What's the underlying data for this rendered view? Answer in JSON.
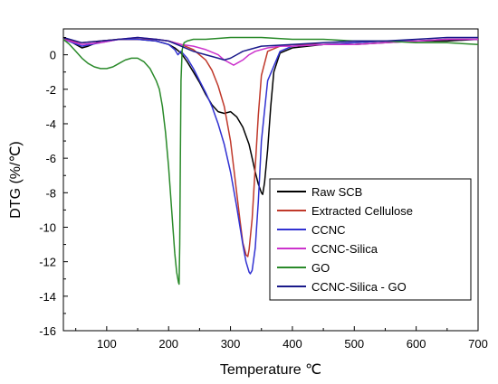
{
  "chart_data": {
    "type": "line",
    "title": "",
    "xlabel": "Temperature  ℃",
    "ylabel": "DTG (%/℃)",
    "xlim": [
      30,
      700
    ],
    "ylim": [
      -16,
      1.5
    ],
    "x_ticks": [
      100,
      200,
      300,
      400,
      500,
      600,
      700
    ],
    "x_tick_labels": [
      "100",
      "200",
      "300",
      "400",
      "500",
      "600",
      "700"
    ],
    "y_ticks": [
      0,
      -2,
      -4,
      -6,
      -8,
      -10,
      -12,
      -14,
      -16
    ],
    "y_tick_labels": [
      "0",
      "-2",
      "-4",
      "-6",
      "-8",
      "-10",
      "-12",
      "-14",
      "-16"
    ],
    "grid": false,
    "legend_position": "lower-right",
    "series": [
      {
        "name": "Raw SCB",
        "color": "#000000",
        "x": [
          30,
          50,
          60,
          70,
          90,
          120,
          150,
          180,
          200,
          210,
          220,
          230,
          240,
          250,
          260,
          270,
          280,
          290,
          300,
          310,
          320,
          330,
          335,
          340,
          345,
          350,
          352,
          355,
          360,
          365,
          370,
          380,
          400,
          450,
          500,
          550,
          600,
          650,
          700
        ],
        "y": [
          1.0,
          0.6,
          0.4,
          0.5,
          0.8,
          0.9,
          0.9,
          0.8,
          0.6,
          0.4,
          0.1,
          -0.4,
          -1.0,
          -1.6,
          -2.3,
          -2.9,
          -3.3,
          -3.4,
          -3.3,
          -3.6,
          -4.2,
          -5.2,
          -6.0,
          -6.8,
          -7.5,
          -8.0,
          -8.1,
          -7.4,
          -5.5,
          -3.0,
          -1.0,
          0.1,
          0.4,
          0.6,
          0.6,
          0.7,
          0.8,
          0.8,
          0.9
        ]
      },
      {
        "name": "Extracted Cellulose",
        "color": "#c0392b",
        "x": [
          30,
          60,
          90,
          120,
          150,
          180,
          200,
          220,
          240,
          260,
          270,
          280,
          290,
          300,
          305,
          310,
          315,
          320,
          325,
          328,
          330,
          335,
          340,
          345,
          350,
          360,
          380,
          400,
          450,
          500,
          550,
          600,
          650,
          700
        ],
        "y": [
          0.9,
          0.7,
          0.8,
          0.9,
          0.9,
          0.9,
          0.8,
          0.6,
          0.3,
          -0.3,
          -0.9,
          -1.8,
          -3.0,
          -5.0,
          -6.5,
          -8.0,
          -9.5,
          -10.9,
          -11.6,
          -11.7,
          -11.3,
          -9.5,
          -6.5,
          -3.5,
          -1.2,
          0.2,
          0.5,
          0.6,
          0.6,
          0.7,
          0.8,
          0.8,
          0.9,
          0.9
        ]
      },
      {
        "name": "CCNC",
        "color": "#3232d2",
        "x": [
          30,
          60,
          90,
          120,
          150,
          180,
          200,
          210,
          215,
          220,
          230,
          240,
          250,
          260,
          270,
          280,
          290,
          300,
          310,
          320,
          325,
          330,
          332,
          335,
          340,
          345,
          350,
          360,
          380,
          400,
          450,
          500,
          550,
          600,
          650,
          700
        ],
        "y": [
          0.9,
          0.5,
          0.7,
          0.9,
          0.9,
          0.8,
          0.6,
          0.3,
          0.0,
          0.2,
          -0.2,
          -0.8,
          -1.5,
          -2.2,
          -3.0,
          -4.0,
          -5.2,
          -6.8,
          -8.8,
          -11.0,
          -12.0,
          -12.6,
          -12.7,
          -12.5,
          -11.2,
          -8.5,
          -5.0,
          -1.5,
          0.2,
          0.5,
          0.6,
          0.7,
          0.8,
          0.8,
          0.9,
          0.9
        ]
      },
      {
        "name": "CCNC-Silica",
        "color": "#cc33cc",
        "x": [
          30,
          60,
          90,
          120,
          150,
          180,
          200,
          210,
          220,
          240,
          260,
          280,
          290,
          300,
          305,
          310,
          320,
          330,
          340,
          360,
          380,
          400,
          450,
          500,
          550,
          600,
          650,
          700
        ],
        "y": [
          0.9,
          0.6,
          0.7,
          0.9,
          1.0,
          0.9,
          0.8,
          0.7,
          0.6,
          0.5,
          0.3,
          0.0,
          -0.3,
          -0.5,
          -0.6,
          -0.5,
          -0.3,
          0.0,
          0.2,
          0.4,
          0.5,
          0.5,
          0.6,
          0.6,
          0.7,
          0.8,
          0.9,
          0.9
        ]
      },
      {
        "name": "GO",
        "color": "#2a8a2a",
        "x": [
          30,
          40,
          50,
          60,
          70,
          80,
          90,
          100,
          110,
          120,
          130,
          140,
          150,
          160,
          170,
          180,
          185,
          190,
          195,
          200,
          205,
          210,
          213,
          216,
          217,
          218,
          219,
          220,
          222,
          225,
          230,
          240,
          260,
          300,
          350,
          400,
          450,
          500,
          550,
          600,
          650,
          700
        ],
        "y": [
          0.9,
          0.6,
          0.2,
          -0.2,
          -0.5,
          -0.7,
          -0.8,
          -0.8,
          -0.7,
          -0.5,
          -0.3,
          -0.2,
          -0.2,
          -0.4,
          -0.8,
          -1.5,
          -2.0,
          -3.0,
          -4.5,
          -6.5,
          -9.0,
          -11.5,
          -12.6,
          -13.2,
          -13.3,
          -11.0,
          -6.0,
          -1.5,
          0.3,
          0.7,
          0.8,
          0.9,
          0.9,
          1.0,
          1.0,
          0.9,
          0.9,
          0.8,
          0.8,
          0.7,
          0.7,
          0.6
        ]
      },
      {
        "name": "CCNC-Silica - GO",
        "color": "#1a1a8a",
        "x": [
          30,
          60,
          90,
          120,
          150,
          180,
          200,
          220,
          240,
          260,
          270,
          280,
          290,
          300,
          310,
          320,
          330,
          340,
          350,
          400,
          450,
          500,
          550,
          600,
          650,
          700
        ],
        "y": [
          1.0,
          0.7,
          0.8,
          0.9,
          1.0,
          0.9,
          0.8,
          0.5,
          0.2,
          0.0,
          -0.1,
          -0.2,
          -0.3,
          -0.2,
          0.0,
          0.2,
          0.3,
          0.4,
          0.5,
          0.6,
          0.7,
          0.8,
          0.8,
          0.9,
          1.0,
          1.0
        ]
      }
    ]
  }
}
